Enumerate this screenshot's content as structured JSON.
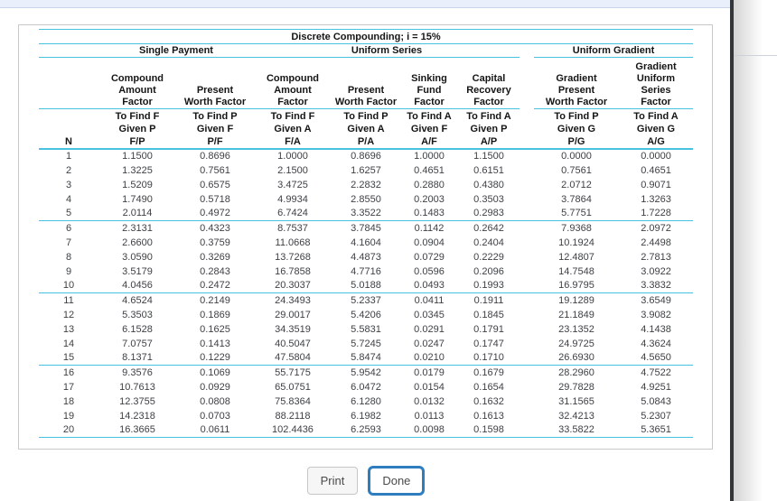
{
  "table": {
    "title": "Discrete Compounding; i = 15%",
    "accent_color": "#47c2e1",
    "n_label": "N",
    "groups": [
      {
        "label": "Single Payment"
      },
      {
        "label": "Uniform Series"
      },
      {
        "label": "Uniform Gradient"
      }
    ],
    "columns": [
      {
        "factor": "Compound\nAmount\nFactor",
        "find": "To Find F\nGiven P\nF/P"
      },
      {
        "factor": "Present\nWorth Factor",
        "find": "To Find P\nGiven F\nP/F"
      },
      {
        "factor": "Compound\nAmount\nFactor",
        "find": "To Find F\nGiven A\nF/A"
      },
      {
        "factor": "Present\nWorth Factor",
        "find": "To Find P\nGiven A\nP/A"
      },
      {
        "factor": "Sinking\nFund\nFactor",
        "find": "To Find A\nGiven F\nA/F"
      },
      {
        "factor": "Capital\nRecovery\nFactor",
        "find": "To Find A\nGiven P\nA/P"
      },
      {
        "factor": "Gradient\nPresent\nWorth Factor",
        "find": "To Find P\nGiven G\nP/G"
      },
      {
        "factor": "Gradient\nUniform\nSeries\nFactor",
        "find": "To Find A\nGiven G\nA/G"
      }
    ],
    "rows": [
      [
        "1",
        "1.1500",
        "0.8696",
        "1.0000",
        "0.8696",
        "1.0000",
        "1.1500",
        "0.0000",
        "0.0000"
      ],
      [
        "2",
        "1.3225",
        "0.7561",
        "2.1500",
        "1.6257",
        "0.4651",
        "0.6151",
        "0.7561",
        "0.4651"
      ],
      [
        "3",
        "1.5209",
        "0.6575",
        "3.4725",
        "2.2832",
        "0.2880",
        "0.4380",
        "2.0712",
        "0.9071"
      ],
      [
        "4",
        "1.7490",
        "0.5718",
        "4.9934",
        "2.8550",
        "0.2003",
        "0.3503",
        "3.7864",
        "1.3263"
      ],
      [
        "5",
        "2.0114",
        "0.4972",
        "6.7424",
        "3.3522",
        "0.1483",
        "0.2983",
        "5.7751",
        "1.7228"
      ],
      [
        "6",
        "2.3131",
        "0.4323",
        "8.7537",
        "3.7845",
        "0.1142",
        "0.2642",
        "7.9368",
        "2.0972"
      ],
      [
        "7",
        "2.6600",
        "0.3759",
        "11.0668",
        "4.1604",
        "0.0904",
        "0.2404",
        "10.1924",
        "2.4498"
      ],
      [
        "8",
        "3.0590",
        "0.3269",
        "13.7268",
        "4.4873",
        "0.0729",
        "0.2229",
        "12.4807",
        "2.7813"
      ],
      [
        "9",
        "3.5179",
        "0.2843",
        "16.7858",
        "4.7716",
        "0.0596",
        "0.2096",
        "14.7548",
        "3.0922"
      ],
      [
        "10",
        "4.0456",
        "0.2472",
        "20.3037",
        "5.0188",
        "0.0493",
        "0.1993",
        "16.9795",
        "3.3832"
      ],
      [
        "11",
        "4.6524",
        "0.2149",
        "24.3493",
        "5.2337",
        "0.0411",
        "0.1911",
        "19.1289",
        "3.6549"
      ],
      [
        "12",
        "5.3503",
        "0.1869",
        "29.0017",
        "5.4206",
        "0.0345",
        "0.1845",
        "21.1849",
        "3.9082"
      ],
      [
        "13",
        "6.1528",
        "0.1625",
        "34.3519",
        "5.5831",
        "0.0291",
        "0.1791",
        "23.1352",
        "4.1438"
      ],
      [
        "14",
        "7.0757",
        "0.1413",
        "40.5047",
        "5.7245",
        "0.0247",
        "0.1747",
        "24.9725",
        "4.3624"
      ],
      [
        "15",
        "8.1371",
        "0.1229",
        "47.5804",
        "5.8474",
        "0.0210",
        "0.1710",
        "26.6930",
        "4.5650"
      ],
      [
        "16",
        "9.3576",
        "0.1069",
        "55.7175",
        "5.9542",
        "0.0179",
        "0.1679",
        "28.2960",
        "4.7522"
      ],
      [
        "17",
        "10.7613",
        "0.0929",
        "65.0751",
        "6.0472",
        "0.0154",
        "0.1654",
        "29.7828",
        "4.9251"
      ],
      [
        "18",
        "12.3755",
        "0.0808",
        "75.8364",
        "6.1280",
        "0.0132",
        "0.1632",
        "31.1565",
        "5.0843"
      ],
      [
        "19",
        "14.2318",
        "0.0703",
        "88.2118",
        "6.1982",
        "0.0113",
        "0.1613",
        "32.4213",
        "5.2307"
      ],
      [
        "20",
        "16.3665",
        "0.0611",
        "102.4436",
        "6.2593",
        "0.0098",
        "0.1598",
        "33.5822",
        "5.3651"
      ]
    ]
  },
  "footer": {
    "print_label": "Print",
    "done_label": "Done"
  }
}
